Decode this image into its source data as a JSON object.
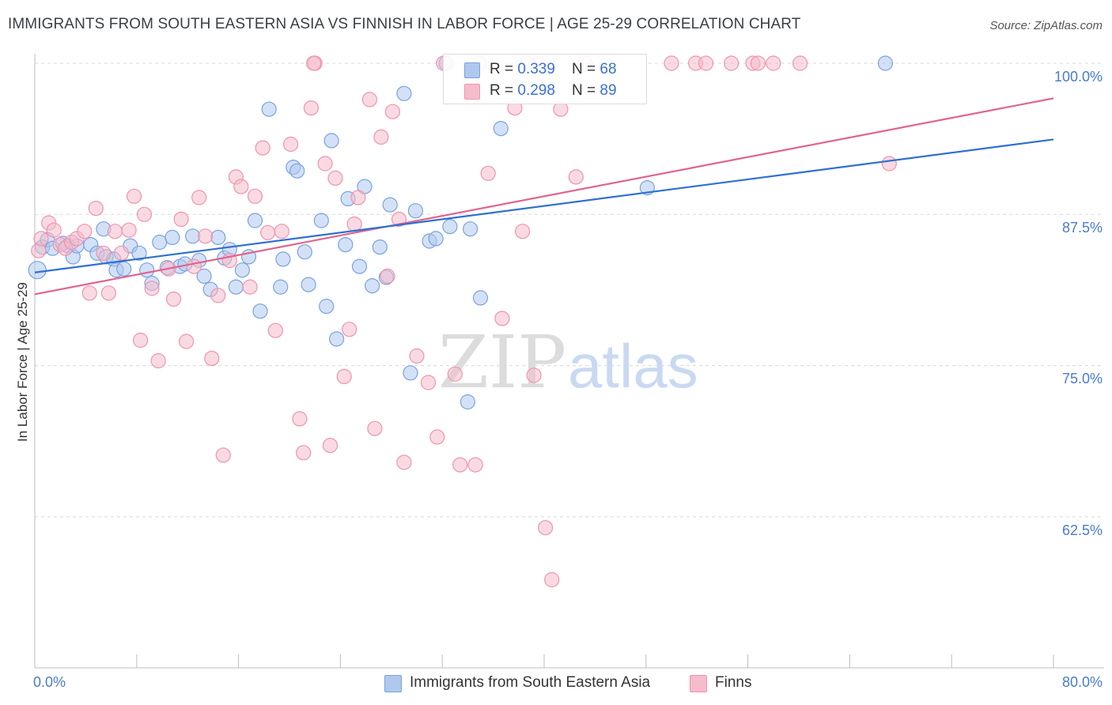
{
  "title": "IMMIGRANTS FROM SOUTH EASTERN ASIA VS FINNISH IN LABOR FORCE | AGE 25-29 CORRELATION CHART",
  "source": "Source: ZipAtlas.com",
  "watermark": {
    "zip": "ZIP",
    "atlas": "atlas"
  },
  "colors": {
    "blue_fill": "#aec8ee",
    "blue_stroke": "#7aa2e0",
    "blue_line": "#3070d0",
    "pink_fill": "#f6bccb",
    "pink_stroke": "#ee94ae",
    "pink_line": "#e0648e",
    "tick_text": "#4a7bd0",
    "grid": "#d8d8d8"
  },
  "legend": {
    "rows": [
      {
        "r_label": "R = ",
        "r_value": "0.339",
        "n_label": "N = ",
        "n_value": "68"
      },
      {
        "r_label": "R = ",
        "r_value": "0.298",
        "n_label": "N = ",
        "n_value": "89"
      }
    ]
  },
  "chart_data": {
    "type": "scatter",
    "title": "IMMIGRANTS FROM SOUTH EASTERN ASIA VS FINNISH IN LABOR FORCE | AGE 25-29 CORRELATION CHART",
    "xlabel": "",
    "ylabel": "In Labor Force | Age 25-29",
    "xlim": [
      0,
      80
    ],
    "ylim": [
      50,
      102.5
    ],
    "x_tick_labels": [
      "0.0%",
      "80.0%"
    ],
    "y_ticks": [
      62.5,
      75.0,
      87.5,
      100.0
    ],
    "y_tick_labels": [
      "62.5%",
      "75.0%",
      "87.5%",
      "100.0%"
    ],
    "grid": "horizontal dashed",
    "legend_position": "top-center",
    "series": [
      {
        "name": "Immigrants from South Eastern Asia",
        "color": "#aec8ee",
        "trend": {
          "x": [
            0,
            80
          ],
          "y": [
            82.7,
            93.7
          ]
        },
        "points": [
          [
            0.2,
            82.9
          ],
          [
            0.6,
            84.8
          ],
          [
            1.0,
            85.4
          ],
          [
            1.4,
            84.7
          ],
          [
            2.2,
            85.1
          ],
          [
            2.6,
            84.9
          ],
          [
            3.0,
            84.0
          ],
          [
            3.3,
            84.9
          ],
          [
            4.4,
            85.0
          ],
          [
            4.9,
            84.3
          ],
          [
            5.4,
            86.3
          ],
          [
            5.6,
            84.0
          ],
          [
            6.2,
            83.8
          ],
          [
            6.4,
            82.9
          ],
          [
            7.0,
            83.0
          ],
          [
            7.5,
            84.9
          ],
          [
            8.2,
            84.3
          ],
          [
            8.8,
            82.9
          ],
          [
            9.2,
            81.8
          ],
          [
            9.8,
            85.2
          ],
          [
            10.4,
            83.1
          ],
          [
            10.8,
            85.6
          ],
          [
            11.4,
            83.2
          ],
          [
            11.8,
            83.4
          ],
          [
            12.4,
            85.7
          ],
          [
            12.9,
            83.7
          ],
          [
            13.3,
            82.4
          ],
          [
            13.8,
            81.3
          ],
          [
            14.4,
            85.6
          ],
          [
            14.9,
            83.9
          ],
          [
            15.3,
            84.6
          ],
          [
            15.8,
            81.5
          ],
          [
            16.3,
            82.9
          ],
          [
            16.8,
            84.0
          ],
          [
            17.3,
            87.0
          ],
          [
            17.7,
            79.5
          ],
          [
            18.4,
            96.2
          ],
          [
            19.3,
            81.5
          ],
          [
            19.5,
            83.8
          ],
          [
            20.3,
            91.4
          ],
          [
            20.6,
            91.1
          ],
          [
            21.2,
            84.4
          ],
          [
            21.5,
            81.7
          ],
          [
            22.5,
            87.0
          ],
          [
            22.9,
            79.9
          ],
          [
            23.3,
            93.6
          ],
          [
            23.7,
            77.2
          ],
          [
            24.4,
            85.0
          ],
          [
            24.6,
            88.8
          ],
          [
            25.5,
            83.2
          ],
          [
            25.9,
            89.8
          ],
          [
            26.5,
            81.6
          ],
          [
            27.1,
            84.8
          ],
          [
            27.6,
            82.3
          ],
          [
            27.9,
            88.3
          ],
          [
            29.0,
            97.5
          ],
          [
            29.5,
            74.4
          ],
          [
            29.9,
            87.8
          ],
          [
            31.0,
            85.3
          ],
          [
            31.5,
            85.5
          ],
          [
            32.3,
            100.0
          ],
          [
            32.6,
            86.5
          ],
          [
            34.0,
            72.0
          ],
          [
            34.2,
            86.3
          ],
          [
            35.0,
            80.6
          ],
          [
            36.6,
            94.6
          ],
          [
            48.1,
            89.7
          ],
          [
            66.8,
            100.0
          ]
        ]
      },
      {
        "name": "Finns",
        "color": "#f6bccb",
        "trend": {
          "x": [
            0,
            80
          ],
          "y": [
            80.9,
            97.1
          ]
        },
        "points": [
          [
            0.3,
            84.5
          ],
          [
            0.5,
            85.5
          ],
          [
            1.1,
            86.8
          ],
          [
            1.5,
            86.2
          ],
          [
            2.0,
            85.0
          ],
          [
            2.4,
            84.7
          ],
          [
            2.9,
            85.2
          ],
          [
            3.3,
            85.5
          ],
          [
            3.9,
            86.1
          ],
          [
            4.3,
            81.0
          ],
          [
            4.8,
            88.0
          ],
          [
            5.4,
            84.3
          ],
          [
            5.8,
            81.0
          ],
          [
            6.3,
            86.1
          ],
          [
            6.8,
            84.3
          ],
          [
            7.4,
            86.2
          ],
          [
            7.8,
            89.0
          ],
          [
            8.3,
            77.1
          ],
          [
            8.6,
            87.5
          ],
          [
            9.2,
            81.4
          ],
          [
            9.7,
            75.4
          ],
          [
            10.5,
            83.0
          ],
          [
            10.9,
            80.5
          ],
          [
            11.5,
            87.1
          ],
          [
            11.9,
            77.0
          ],
          [
            12.5,
            83.2
          ],
          [
            12.9,
            88.9
          ],
          [
            13.4,
            85.7
          ],
          [
            13.9,
            75.6
          ],
          [
            14.4,
            80.8
          ],
          [
            14.8,
            67.6
          ],
          [
            15.3,
            83.7
          ],
          [
            15.8,
            90.6
          ],
          [
            16.2,
            89.8
          ],
          [
            16.9,
            81.5
          ],
          [
            17.3,
            89.0
          ],
          [
            17.9,
            93.0
          ],
          [
            18.3,
            86.0
          ],
          [
            18.9,
            77.9
          ],
          [
            19.4,
            86.1
          ],
          [
            20.1,
            93.3
          ],
          [
            20.8,
            70.6
          ],
          [
            21.1,
            67.8
          ],
          [
            21.7,
            96.3
          ],
          [
            22.0,
            100.0
          ],
          [
            22.8,
            91.7
          ],
          [
            23.2,
            68.4
          ],
          [
            23.6,
            90.5
          ],
          [
            24.3,
            74.1
          ],
          [
            24.7,
            78.0
          ],
          [
            25.1,
            86.7
          ],
          [
            25.4,
            88.9
          ],
          [
            26.3,
            97.0
          ],
          [
            26.7,
            69.8
          ],
          [
            27.2,
            93.9
          ],
          [
            27.7,
            82.4
          ],
          [
            28.1,
            96.0
          ],
          [
            28.6,
            87.1
          ],
          [
            29.0,
            67.0
          ],
          [
            30.0,
            75.8
          ],
          [
            30.9,
            73.6
          ],
          [
            31.6,
            69.1
          ],
          [
            32.1,
            100.0
          ],
          [
            33.0,
            74.3
          ],
          [
            33.4,
            66.8
          ],
          [
            34.6,
            66.8
          ],
          [
            34.9,
            100.0
          ],
          [
            35.6,
            90.9
          ],
          [
            36.7,
            78.9
          ],
          [
            37.7,
            96.3
          ],
          [
            38.3,
            86.1
          ],
          [
            39.2,
            74.2
          ],
          [
            40.1,
            61.6
          ],
          [
            40.6,
            57.3
          ],
          [
            41.3,
            96.2
          ],
          [
            42.5,
            90.6
          ],
          [
            43.2,
            100.0
          ],
          [
            50.0,
            100.0
          ],
          [
            51.9,
            100.0
          ],
          [
            52.7,
            100.0
          ],
          [
            54.7,
            100.0
          ],
          [
            56.4,
            100.0
          ],
          [
            56.8,
            100.0
          ],
          [
            60.1,
            100.0
          ],
          [
            67.1,
            91.7
          ],
          [
            21.9,
            100.0
          ],
          [
            39.6,
            100.0
          ],
          [
            38.7,
            100.0
          ],
          [
            58.0,
            100.0
          ]
        ]
      }
    ]
  },
  "bottom_legend": [
    {
      "label": "Immigrants from South Eastern Asia"
    },
    {
      "label": "Finns"
    }
  ]
}
